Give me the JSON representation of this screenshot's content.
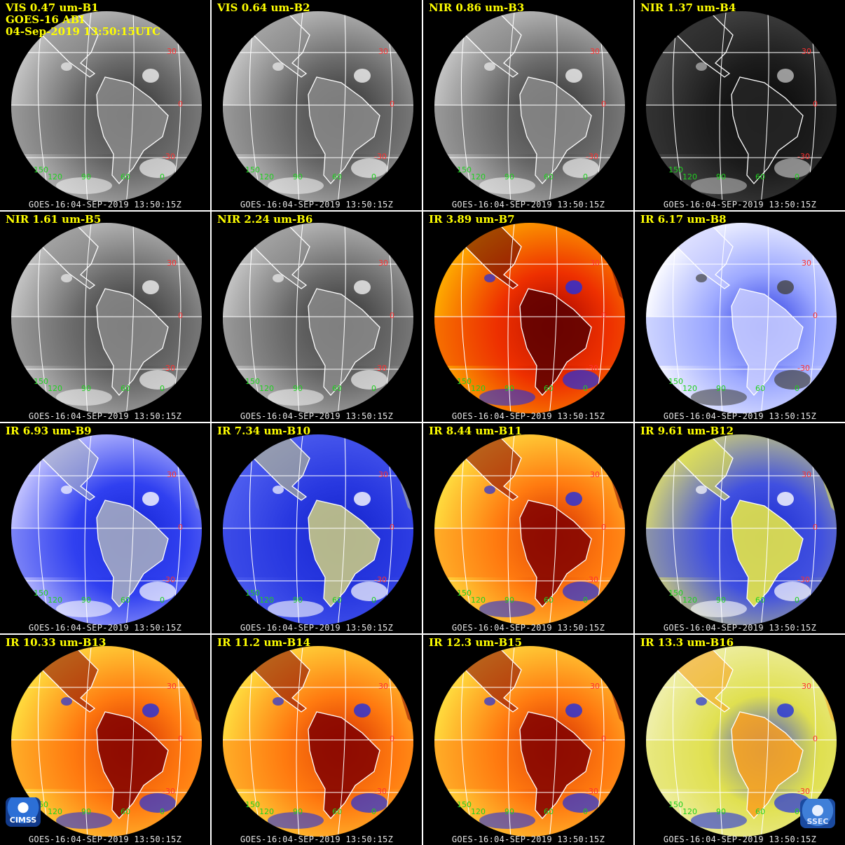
{
  "header": {
    "product": "GOES-16 ABI",
    "datetime": "04-Sep-2019 13:50:15UTC"
  },
  "footer_text": "GOES-16:04-SEP-2019 13:50:15Z",
  "grid_labels": {
    "lat": [
      "30",
      "0",
      "-30"
    ],
    "lon": [
      "150",
      "120",
      "90",
      "60",
      "0"
    ]
  },
  "colors": {
    "title": "#ffff00",
    "lat_label": "#ff3030",
    "lon_label": "#20d020",
    "grid": "#ffffff"
  },
  "panels": [
    {
      "title": "VIS 0.47 um-B1",
      "palette": "vis"
    },
    {
      "title": "VIS 0.64 um-B2",
      "palette": "vis"
    },
    {
      "title": "NIR 0.86 um-B3",
      "palette": "vis"
    },
    {
      "title": "NIR 1.37 um-B4",
      "palette": "dark"
    },
    {
      "title": "NIR 1.61 um-B5",
      "palette": "vis"
    },
    {
      "title": "NIR 2.24 um-B6",
      "palette": "vis"
    },
    {
      "title": "IR 3.89 um-B7",
      "palette": "red"
    },
    {
      "title": "IR 6.17 um-B8",
      "palette": "wv_white"
    },
    {
      "title": "IR 6.93 um-B9",
      "palette": "wv_blue"
    },
    {
      "title": "IR 7.34 um-B10",
      "palette": "wv_yellow"
    },
    {
      "title": "IR 8.44 um-B11",
      "palette": "ir"
    },
    {
      "title": "IR 9.61 um-B12",
      "palette": "yellow_blue"
    },
    {
      "title": "IR 10.33 um-B13",
      "palette": "ir"
    },
    {
      "title": "IR 11.2 um-B14",
      "palette": "ir"
    },
    {
      "title": "IR 12.3 um-B15",
      "palette": "ir"
    },
    {
      "title": "IR 13.3 um-B16",
      "palette": "yellow"
    }
  ],
  "logos": {
    "left": "CIMSS",
    "right": "SSEC"
  }
}
